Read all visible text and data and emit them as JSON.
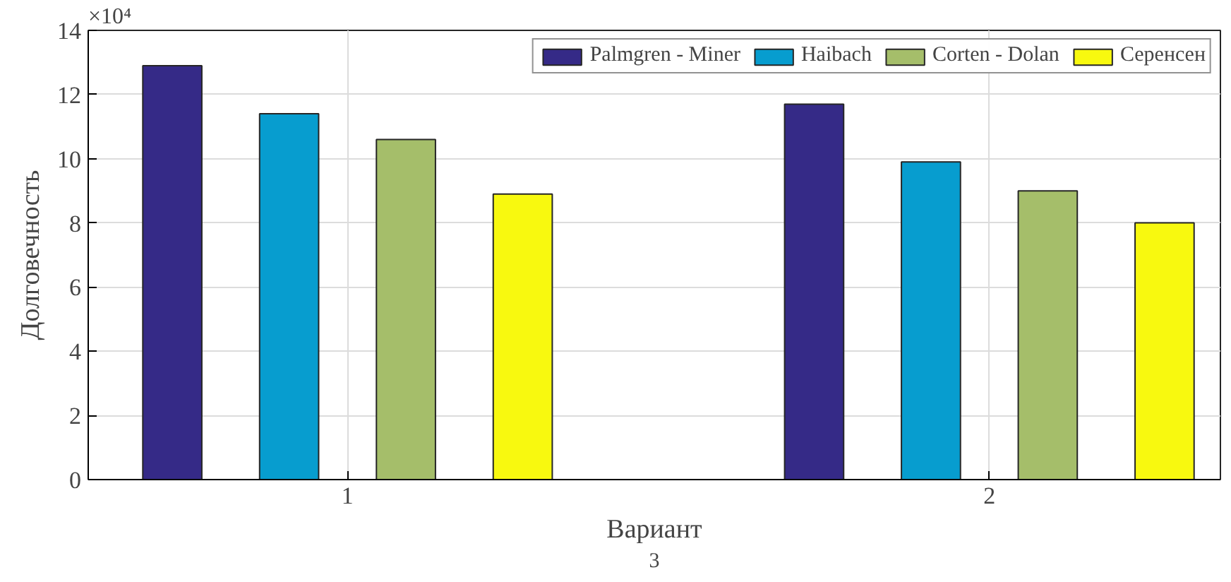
{
  "chart_data": {
    "type": "bar",
    "xlabel": "Вариант",
    "ylabel": "Долговечность",
    "categories": [
      "1",
      "2"
    ],
    "series": [
      {
        "name": "Palmgren - Miner",
        "color": "#352a87",
        "values": [
          12.9,
          11.7
        ]
      },
      {
        "name": "Haibach",
        "color": "#079dcf",
        "values": [
          11.4,
          9.9
        ]
      },
      {
        "name": "Corten - Dolan",
        "color": "#a5be6a",
        "values": [
          10.6,
          9.0
        ]
      },
      {
        "name": "Серенсен",
        "color": "#f8f90f",
        "values": [
          8.9,
          8.0
        ]
      }
    ],
    "ylim": [
      0,
      14
    ],
    "yticks": [
      0,
      2,
      4,
      6,
      8,
      10,
      12,
      14
    ],
    "grid": true,
    "legend": "top right",
    "annotations": [
      "×10⁴",
      "3"
    ]
  }
}
